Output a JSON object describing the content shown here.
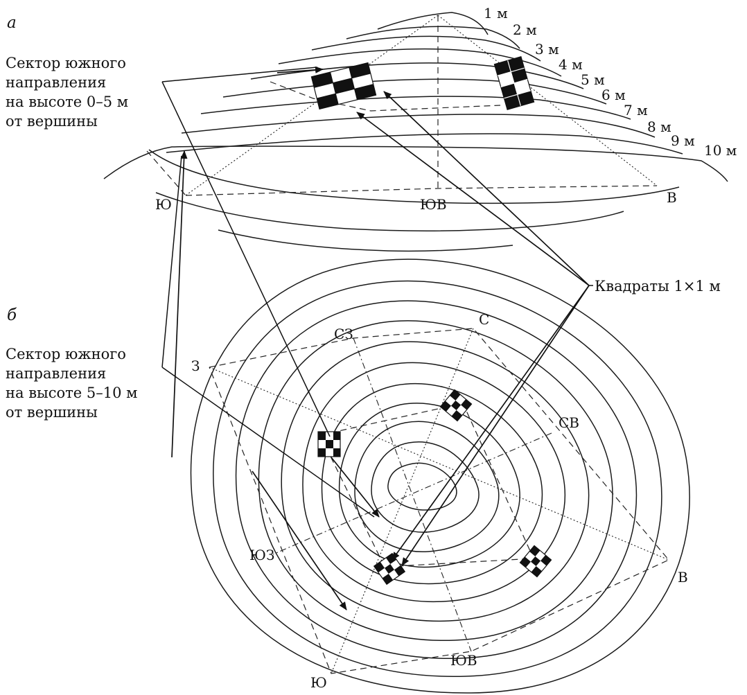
{
  "panel_a": {
    "letter": "а",
    "sector_caption": [
      "Сектор южного",
      "направления",
      "на высоте 0–5 м",
      "от вершины"
    ],
    "height_labels": [
      "1 м",
      "2 м",
      "3 м",
      "4 м",
      "5 м",
      "6 м",
      "7 м",
      "8 м",
      "9 м",
      "10 м"
    ],
    "direction_labels": {
      "south": "Ю",
      "southeast": "ЮВ",
      "east": "В"
    }
  },
  "panel_b": {
    "letter": "б",
    "sector_caption": [
      "Сектор южного",
      "направления",
      "на высоте 5–10 м",
      "от вершины"
    ],
    "direction_labels": {
      "north": "С",
      "northwest": "СЗ",
      "west": "З",
      "northeast": "СВ",
      "southwest": "ЮЗ",
      "east": "В",
      "southeast": "ЮВ",
      "south": "Ю"
    }
  },
  "squares_label": "Квадраты 1×1 м",
  "colors": {
    "ink": "#111111",
    "background": "#ffffff"
  },
  "icons": [
    "sampling-square-icon"
  ]
}
